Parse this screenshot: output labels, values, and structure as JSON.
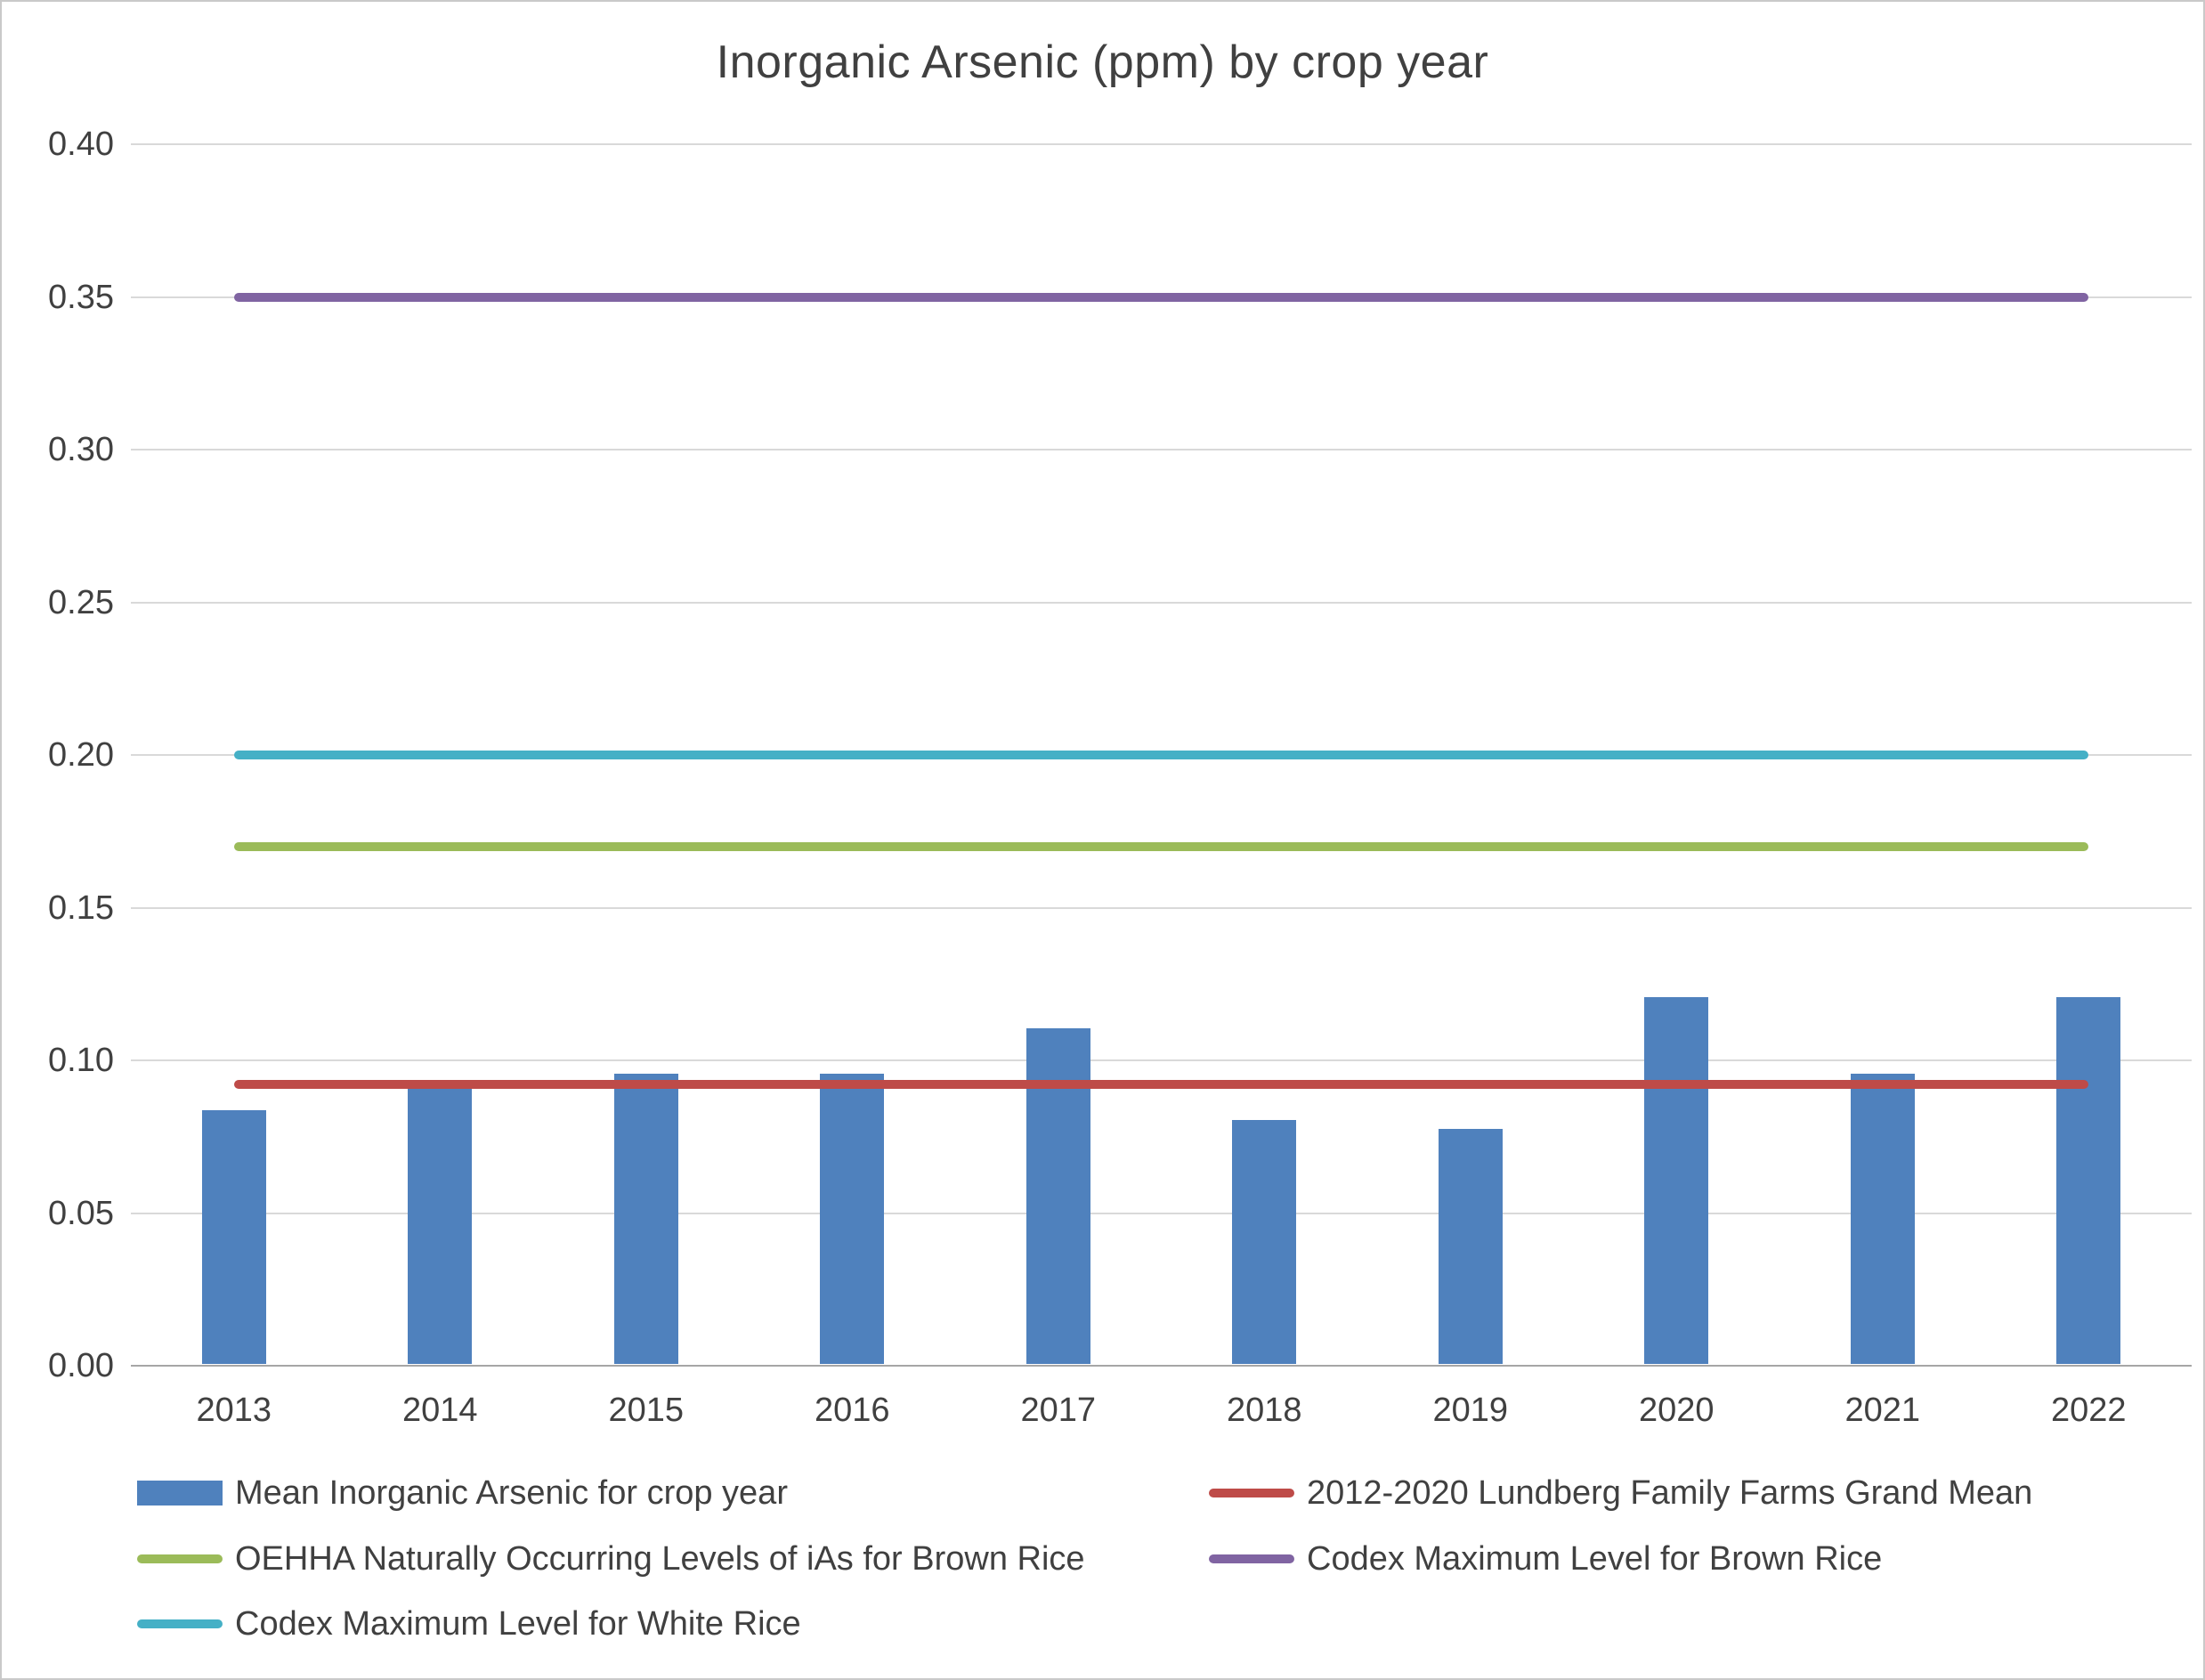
{
  "chart_data": {
    "type": "bar",
    "title": "Inorganic Arsenic (ppm) by crop year",
    "xlabel": "",
    "ylabel": "",
    "categories": [
      "2013",
      "2014",
      "2015",
      "2016",
      "2017",
      "2018",
      "2019",
      "2020",
      "2021",
      "2022"
    ],
    "series": [
      {
        "name": "Mean Inorganic Arsenic for crop year",
        "type": "bar",
        "color": "#4f81bd",
        "values": [
          0.083,
          0.09,
          0.095,
          0.095,
          0.11,
          0.08,
          0.077,
          0.12,
          0.095,
          0.12
        ]
      }
    ],
    "reference_lines": [
      {
        "name": "2012-2020 Lundberg Family Farms Grand Mean",
        "value": 0.092,
        "color": "#be4b48"
      },
      {
        "name": "OEHHA Naturally Occurring Levels of iAs for Brown Rice",
        "value": 0.17,
        "color": "#9bbb59"
      },
      {
        "name": "Codex Maximum Level for White Rice",
        "value": 0.2,
        "color": "#45b0c6"
      },
      {
        "name": "Codex Maximum Level for Brown Rice",
        "value": 0.35,
        "color": "#8064a2"
      }
    ],
    "ylim": [
      0,
      0.4
    ],
    "ytick_step": 0.05,
    "ytick_labels": [
      "0.00",
      "0.05",
      "0.10",
      "0.15",
      "0.20",
      "0.25",
      "0.30",
      "0.35",
      "0.40"
    ],
    "grid": true,
    "legend_position": "bottom",
    "legend": [
      {
        "label": "Mean Inorganic Arsenic for crop year",
        "swatch": "bar",
        "color": "#4f81bd"
      },
      {
        "label": "2012-2020 Lundberg Family Farms Grand Mean",
        "swatch": "line",
        "color": "#be4b48"
      },
      {
        "label": "OEHHA Naturally Occurring Levels of iAs for Brown Rice",
        "swatch": "line",
        "color": "#9bbb59"
      },
      {
        "label": "Codex Maximum Level for Brown Rice",
        "swatch": "line",
        "color": "#8064a2"
      },
      {
        "label": "Codex Maximum Level for White Rice",
        "swatch": "line",
        "color": "#45b0c6"
      }
    ]
  }
}
